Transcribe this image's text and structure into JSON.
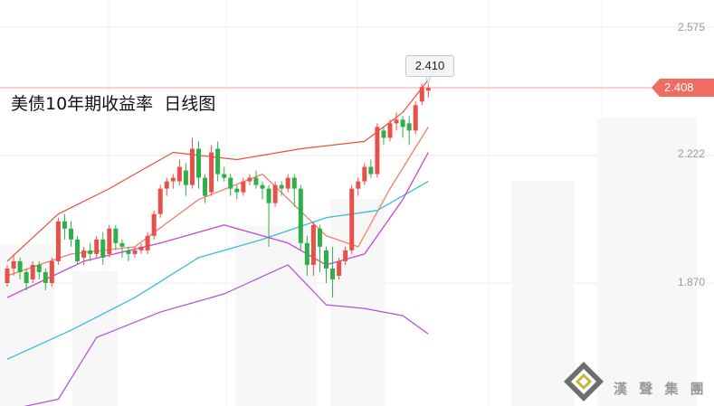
{
  "chart_data": {
    "type": "candlestick",
    "title": "美债10年期收益率  日线图",
    "y_ticks": [
      2.575,
      2.222,
      1.87
    ],
    "ylim": [
      1.55,
      2.68
    ],
    "grid": true,
    "current_price": "2.408",
    "high_callout": "2.410",
    "candles": [
      [
        1.87,
        1.91,
        1.92,
        1.86
      ],
      [
        1.91,
        1.93,
        1.95,
        1.89
      ],
      [
        1.93,
        1.9,
        1.94,
        1.88
      ],
      [
        1.9,
        1.87,
        1.91,
        1.85
      ],
      [
        1.88,
        1.92,
        1.93,
        1.87
      ],
      [
        1.92,
        1.9,
        1.93,
        1.88
      ],
      [
        1.9,
        1.87,
        1.91,
        1.85
      ],
      [
        1.87,
        1.93,
        1.94,
        1.86
      ],
      [
        1.93,
        2.04,
        2.05,
        1.92
      ],
      [
        2.04,
        2.02,
        2.06,
        1.99
      ],
      [
        2.02,
        1.99,
        2.04,
        1.97
      ],
      [
        1.99,
        1.93,
        2.0,
        1.92
      ],
      [
        1.94,
        1.96,
        1.97,
        1.92
      ],
      [
        1.96,
        1.95,
        1.98,
        1.93
      ],
      [
        1.95,
        1.99,
        2.0,
        1.94
      ],
      [
        1.99,
        1.94,
        2.01,
        1.92
      ],
      [
        1.95,
        2.02,
        2.03,
        1.94
      ],
      [
        2.02,
        1.98,
        2.03,
        1.96
      ],
      [
        1.98,
        1.97,
        1.99,
        1.94
      ],
      [
        1.96,
        1.95,
        1.97,
        1.93
      ],
      [
        1.95,
        1.96,
        1.97,
        1.94
      ],
      [
        1.96,
        1.97,
        1.98,
        1.95
      ],
      [
        1.96,
        2.0,
        2.01,
        1.95
      ],
      [
        2.0,
        2.06,
        2.07,
        1.99
      ],
      [
        2.06,
        2.13,
        2.14,
        2.05
      ],
      [
        2.13,
        2.15,
        2.16,
        2.11
      ],
      [
        2.15,
        2.16,
        2.17,
        2.13
      ],
      [
        2.15,
        2.19,
        2.21,
        2.14
      ],
      [
        2.18,
        2.14,
        2.2,
        2.11
      ],
      [
        2.14,
        2.24,
        2.27,
        2.13
      ],
      [
        2.24,
        2.16,
        2.26,
        2.13
      ],
      [
        2.16,
        2.11,
        2.17,
        2.09
      ],
      [
        2.12,
        2.23,
        2.25,
        2.11
      ],
      [
        2.24,
        2.17,
        2.26,
        2.15
      ],
      [
        2.17,
        2.16,
        2.19,
        2.15
      ],
      [
        2.16,
        2.13,
        2.17,
        2.11
      ],
      [
        2.13,
        2.12,
        2.14,
        2.1
      ],
      [
        2.12,
        2.15,
        2.16,
        2.11
      ],
      [
        2.15,
        2.16,
        2.17,
        2.14
      ],
      [
        2.16,
        2.14,
        2.18,
        2.13
      ],
      [
        2.14,
        2.13,
        2.15,
        2.1
      ],
      [
        2.13,
        2.09,
        2.14,
        1.97
      ],
      [
        2.09,
        2.14,
        2.15,
        2.08
      ],
      [
        2.14,
        2.13,
        2.15,
        2.11
      ],
      [
        2.13,
        2.16,
        2.17,
        2.12
      ],
      [
        2.16,
        2.13,
        2.17,
        2.08
      ],
      [
        2.13,
        1.98,
        2.14,
        1.96
      ],
      [
        1.98,
        1.92,
        2.0,
        1.89
      ],
      [
        1.92,
        2.03,
        2.04,
        1.89
      ],
      [
        2.02,
        1.97,
        2.03,
        1.9
      ],
      [
        1.96,
        1.91,
        1.97,
        1.87
      ],
      [
        1.91,
        1.88,
        1.97,
        1.83
      ],
      [
        1.89,
        1.93,
        1.94,
        1.88
      ],
      [
        1.93,
        1.96,
        1.97,
        1.92
      ],
      [
        1.96,
        2.13,
        2.14,
        1.95
      ],
      [
        2.13,
        2.15,
        2.16,
        2.11
      ],
      [
        2.15,
        2.19,
        2.2,
        2.14
      ],
      [
        2.19,
        2.17,
        2.21,
        2.16
      ],
      [
        2.17,
        2.3,
        2.31,
        2.16
      ],
      [
        2.29,
        2.27,
        2.3,
        2.25
      ],
      [
        2.27,
        2.31,
        2.32,
        2.26
      ],
      [
        2.31,
        2.32,
        2.34,
        2.29
      ],
      [
        2.32,
        2.3,
        2.33,
        2.27
      ],
      [
        2.31,
        2.29,
        2.33,
        2.25
      ],
      [
        2.29,
        2.36,
        2.37,
        2.28
      ],
      [
        2.37,
        2.41,
        2.42,
        2.36
      ],
      [
        2.4,
        2.408,
        2.42,
        2.38
      ]
    ],
    "moving_averages": [
      {
        "color": "#f0806c",
        "values": [
          [
            0,
            1.89
          ],
          [
            10,
            1.95
          ],
          [
            20,
            1.97
          ],
          [
            30,
            2.1
          ],
          [
            40,
            2.17
          ],
          [
            50,
            2.0
          ],
          [
            55,
            1.97
          ],
          [
            60,
            2.13
          ],
          [
            66,
            2.3
          ]
        ]
      },
      {
        "color": "#3cbcdc",
        "values": [
          [
            0,
            1.66
          ],
          [
            10,
            1.74
          ],
          [
            20,
            1.83
          ],
          [
            30,
            1.94
          ],
          [
            40,
            1.99
          ],
          [
            50,
            2.05
          ],
          [
            58,
            2.07
          ],
          [
            66,
            2.15
          ]
        ]
      },
      {
        "color": "#cc44cc",
        "values": [
          [
            0,
            1.83
          ],
          [
            6,
            1.88
          ],
          [
            12,
            1.93
          ],
          [
            24,
            1.98
          ],
          [
            34,
            2.03
          ],
          [
            44,
            1.98
          ],
          [
            50,
            1.92
          ],
          [
            56,
            1.95
          ],
          [
            62,
            2.1
          ],
          [
            66,
            2.23
          ]
        ]
      }
    ],
    "bollinger": {
      "color": "#e6523c",
      "upper": [
        [
          0,
          1.93
        ],
        [
          8,
          2.06
        ],
        [
          16,
          2.13
        ],
        [
          26,
          2.23
        ],
        [
          36,
          2.21
        ],
        [
          46,
          2.24
        ],
        [
          56,
          2.26
        ],
        [
          62,
          2.34
        ],
        [
          66,
          2.43
        ]
      ],
      "lower_color": "#b050d8",
      "lower": [
        [
          0,
          1.52
        ],
        [
          8,
          1.55
        ],
        [
          14,
          1.72
        ],
        [
          24,
          1.79
        ],
        [
          34,
          1.84
        ],
        [
          44,
          1.92
        ],
        [
          50,
          1.81
        ],
        [
          56,
          1.8
        ],
        [
          62,
          1.78
        ],
        [
          66,
          1.73
        ]
      ]
    }
  },
  "branding": {
    "logo": "diamond-logo",
    "text": "漢 聲 集 團"
  }
}
